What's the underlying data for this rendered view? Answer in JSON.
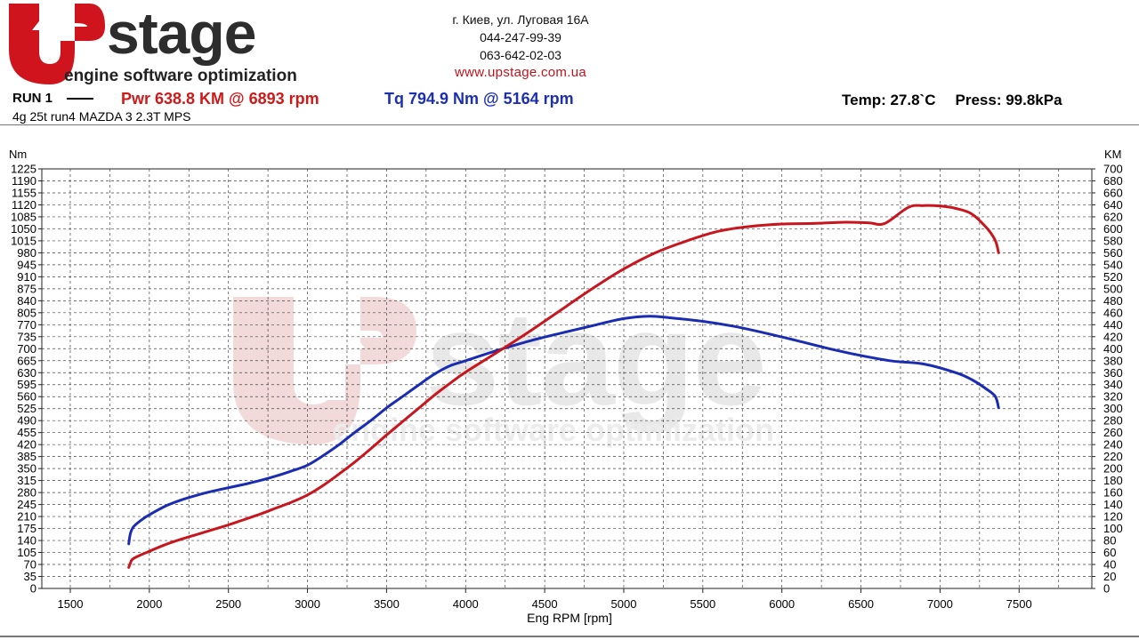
{
  "logo": {
    "brand": "stage",
    "tagline": "engine software optimization"
  },
  "contacts": {
    "address": "г. Киев, ул. Луговая 16А",
    "phone1": "044-247-99-39",
    "phone2": "063-642-02-03",
    "website": "www.upstage.com.ua"
  },
  "run": {
    "label": "RUN 1",
    "power_summary": "Pwr  638.8 KM @ 6893 rpm",
    "torque_summary": "Tq 794.9 Nm @ 5164 rpm",
    "temp": "Temp: 27.8`C",
    "press": "Press: 99.8kPa",
    "subtitle": "4g 25t run4 MAZDA 3 2.3T MPS"
  },
  "colors": {
    "power": "#c8161e",
    "torque": "#1a2cb2",
    "grid": "#444444",
    "watermark_red": "#f2dcdc",
    "watermark_gray": "#e6e6e6"
  },
  "chart_data": {
    "type": "line",
    "title": "",
    "xlabel": "Eng RPM [rpm]",
    "ylabel_left": "Nm",
    "ylabel_right": "KM",
    "xlim": [
      1320,
      7960
    ],
    "x_ticks": [
      1500,
      2000,
      2500,
      3000,
      3500,
      4000,
      4500,
      5000,
      5500,
      6000,
      6500,
      7000,
      7500
    ],
    "ylim_left": [
      0,
      1225
    ],
    "y_ticks_left_step": 35,
    "ylim_right": [
      0,
      700
    ],
    "y_ticks_right_step": 20,
    "grid": true,
    "series": [
      {
        "name": "Tq",
        "axis": "left",
        "color": "#1a2cb2",
        "x": [
          1870,
          1880,
          1900,
          1950,
          2000,
          2100,
          2200,
          2300,
          2400,
          2500,
          2600,
          2700,
          2800,
          2900,
          3000,
          3100,
          3200,
          3300,
          3400,
          3500,
          3600,
          3700,
          3800,
          3900,
          4000,
          4200,
          4400,
          4600,
          4800,
          5000,
          5164,
          5300,
          5500,
          5700,
          5900,
          6100,
          6300,
          6500,
          6700,
          6900,
          7100,
          7200,
          7300,
          7350,
          7370
        ],
        "y": [
          130,
          160,
          180,
          200,
          215,
          240,
          258,
          272,
          284,
          294,
          304,
          315,
          328,
          343,
          360,
          388,
          420,
          456,
          490,
          527,
          560,
          593,
          625,
          650,
          665,
          695,
          722,
          745,
          767,
          788,
          794.9,
          790,
          780,
          765,
          745,
          723,
          700,
          680,
          664,
          655,
          630,
          610,
          580,
          560,
          528
        ]
      },
      {
        "name": "Pwr",
        "axis": "right",
        "color": "#c8161e",
        "x": [
          1870,
          1880,
          1900,
          2000,
          2100,
          2200,
          2300,
          2400,
          2500,
          2600,
          2700,
          2800,
          2900,
          3000,
          3100,
          3200,
          3300,
          3400,
          3500,
          3600,
          3700,
          3800,
          3900,
          4000,
          4200,
          4400,
          4600,
          4800,
          5000,
          5200,
          5400,
          5600,
          5800,
          6000,
          6200,
          6400,
          6550,
          6650,
          6800,
          6893,
          7000,
          7100,
          7200,
          7300,
          7350,
          7370
        ],
        "y": [
          35,
          42,
          50,
          62,
          73,
          82,
          90,
          98,
          106,
          115,
          124,
          134,
          144,
          156,
          172,
          191,
          211,
          233,
          256,
          278,
          300,
          322,
          342,
          361,
          394,
          428,
          464,
          500,
          533,
          560,
          580,
          596,
          604,
          608,
          609,
          611,
          610,
          609,
          636,
          638.8,
          638,
          634,
          625,
          600,
          580,
          560
        ]
      }
    ]
  }
}
